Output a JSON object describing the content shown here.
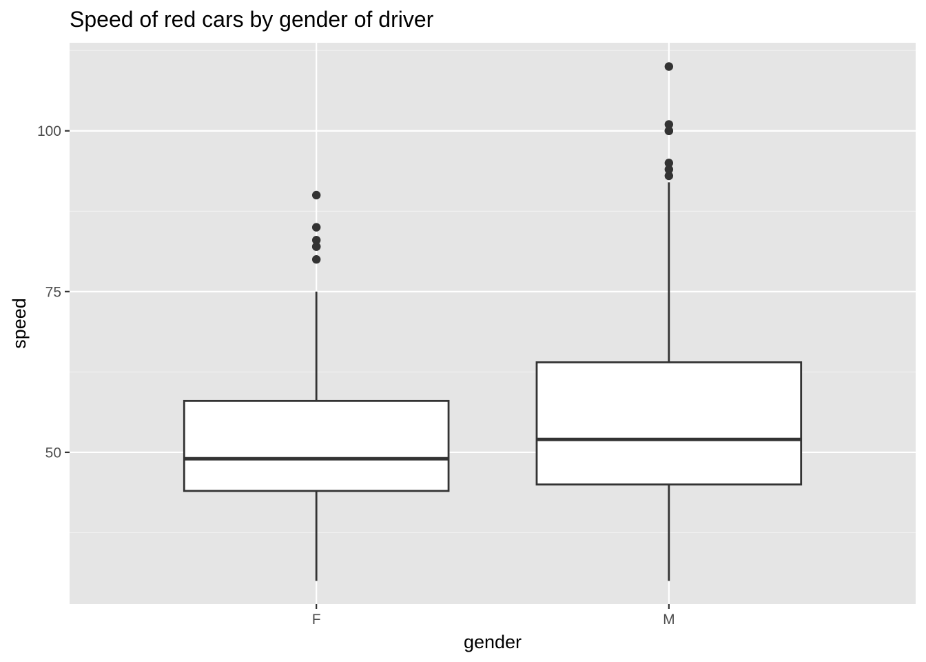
{
  "chart_data": {
    "type": "boxplot",
    "title": "Speed of red cars by gender of driver",
    "xlabel": "gender",
    "ylabel": "speed",
    "categories": [
      "F",
      "M"
    ],
    "ylim": [
      26.4,
      113.7
    ],
    "y_ticks": [
      50,
      75,
      100
    ],
    "y_tick_labels": [
      "50",
      "75",
      "100"
    ],
    "y_minor_ticks": [
      37.5,
      62.5,
      87.5,
      112.5
    ],
    "grid": true,
    "legend": "none",
    "boxes": [
      {
        "category": "F",
        "whisker_low": 30,
        "q1": 44,
        "median": 49,
        "q3": 58,
        "whisker_high": 75,
        "outliers": [
          80,
          82,
          82,
          83,
          85,
          90
        ]
      },
      {
        "category": "M",
        "whisker_low": 30,
        "q1": 45,
        "median": 52,
        "q3": 64,
        "whisker_high": 92,
        "outliers": [
          93,
          94,
          95,
          100,
          100,
          101,
          110
        ]
      }
    ],
    "colors": {
      "panel_background": "#e5e5e5",
      "grid_major": "#ffffff",
      "grid_minor": "#f2f2f2",
      "box_fill": "#ffffff",
      "box_line": "#333333",
      "point": "#333333",
      "tick_label": "#4d4d4d",
      "tick_mark": "#333333",
      "title": "#000000"
    }
  }
}
